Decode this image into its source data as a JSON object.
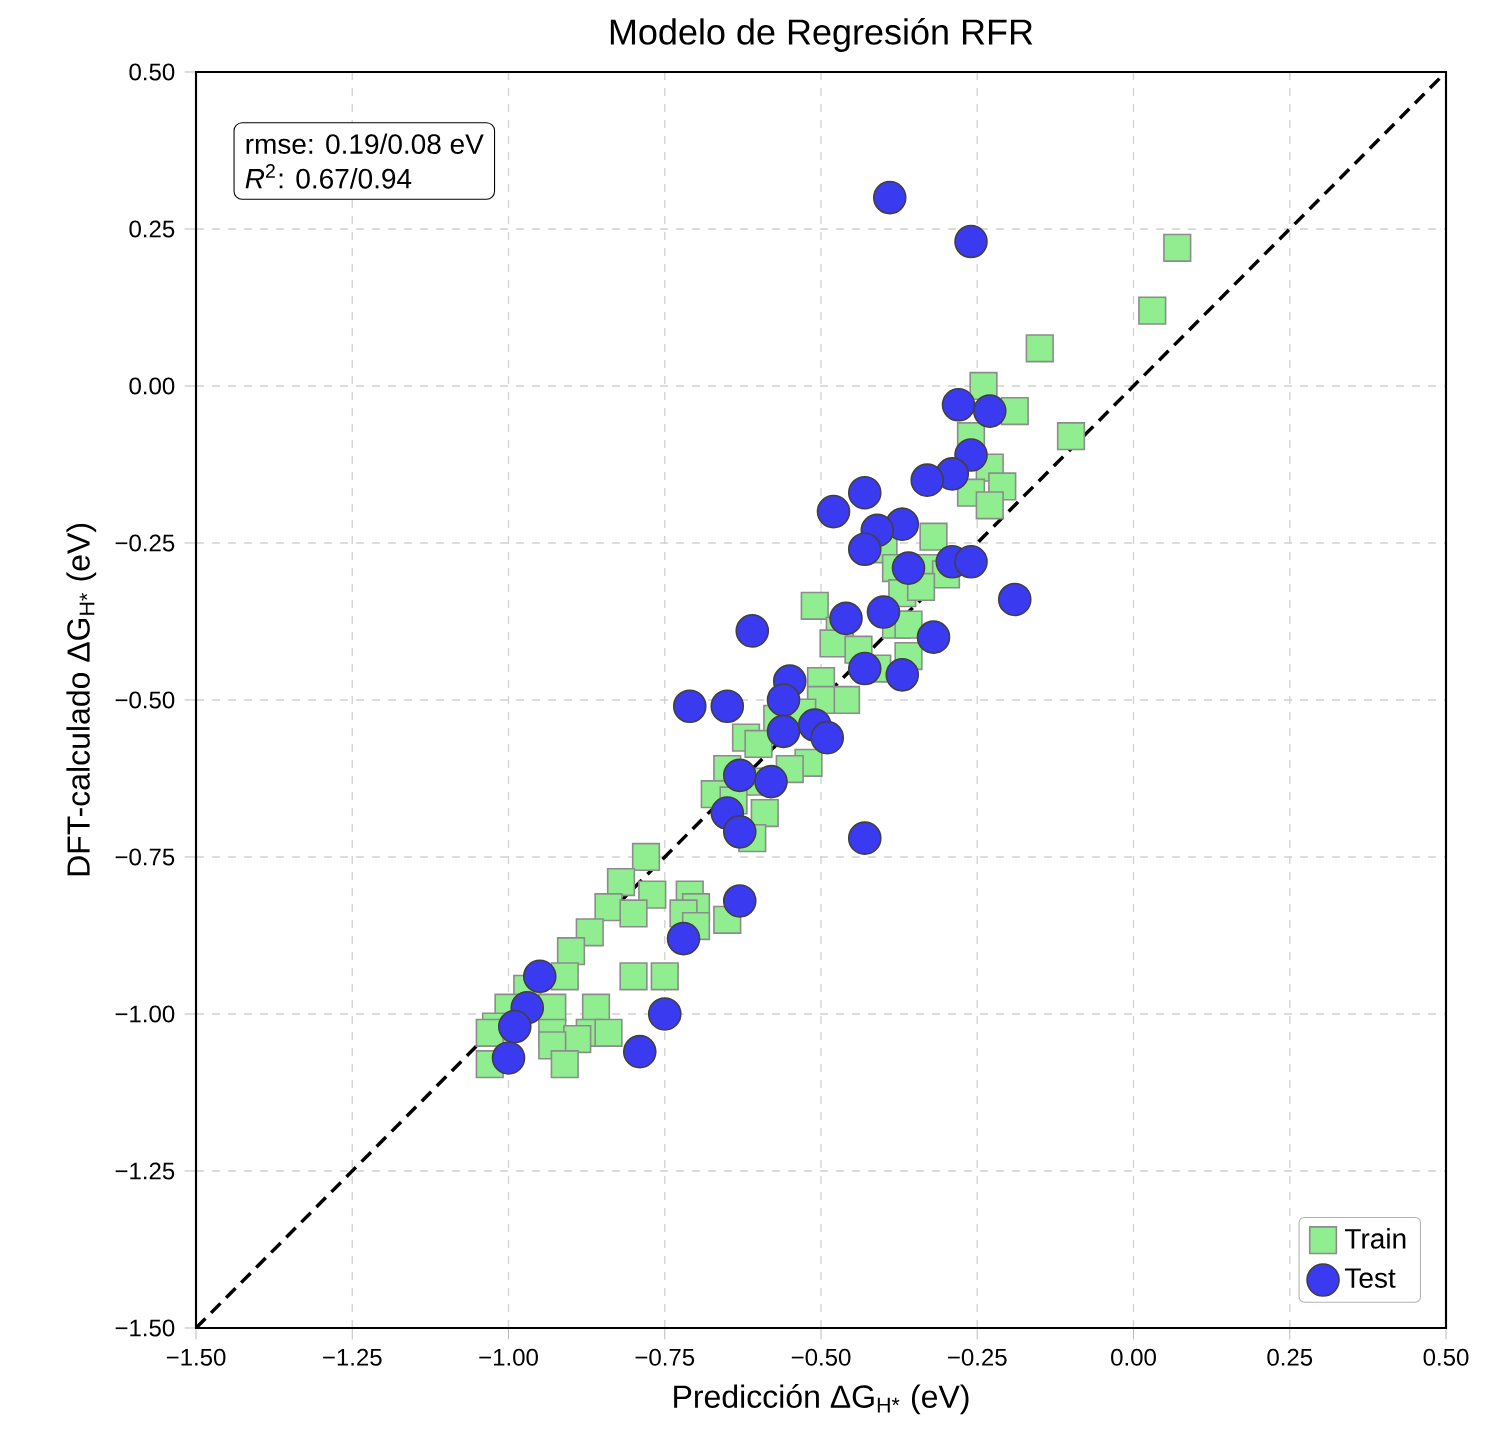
{
  "chart_data": {
    "type": "scatter",
    "title": "Modelo de Regresión RFR",
    "xlabel": "Predicción ΔG$_{H*}$ (eV)",
    "ylabel": "DFT-calculado ΔG$_{H*}$ (eV)",
    "annotations": [
      "rmse: 0.19/0.08 eV",
      "*R*$^{2}$: 0.67/0.94"
    ],
    "xlim": [
      -1.5,
      0.5
    ],
    "ylim": [
      -1.5,
      0.5
    ],
    "xticks": [
      {
        "value": -1.5,
        "label": "−1.50"
      },
      {
        "value": -1.25,
        "label": "−1.25"
      },
      {
        "value": -1.0,
        "label": "−1.00"
      },
      {
        "value": -0.75,
        "label": "−0.75"
      },
      {
        "value": -0.5,
        "label": "−0.50"
      },
      {
        "value": -0.25,
        "label": "−0.25"
      },
      {
        "value": 0,
        "label": "0.00"
      },
      {
        "value": 0.25,
        "label": "0.25"
      },
      {
        "value": 0.5,
        "label": "0.50"
      }
    ],
    "yticks": [
      {
        "value": -1.5,
        "label": "−1.50"
      },
      {
        "value": -1.25,
        "label": "−1.25"
      },
      {
        "value": -1.0,
        "label": "−1.00"
      },
      {
        "value": -0.75,
        "label": "−0.75"
      },
      {
        "value": -0.5,
        "label": "−0.50"
      },
      {
        "value": -0.25,
        "label": "−0.25"
      },
      {
        "value": 0,
        "label": "0.00"
      },
      {
        "value": 0.25,
        "label": "0.25"
      },
      {
        "value": 0.5,
        "label": "0.50"
      }
    ],
    "grid": true,
    "legend": "bottom right",
    "series": [
      {
        "name": "Train",
        "marker": "square",
        "color": "#90ee90",
        "x": [
          0.07,
          0.03,
          -0.15,
          -0.24,
          -0.19,
          -0.1,
          -0.26,
          -0.23,
          -0.21,
          -0.26,
          -0.23,
          -0.32,
          -0.4,
          -0.38,
          -0.33,
          -0.3,
          -0.37,
          -0.34,
          -0.51,
          -0.47,
          -0.38,
          -0.36,
          -0.48,
          -0.44,
          -0.36,
          -0.41,
          -0.5,
          -0.46,
          -0.5,
          -0.53,
          -0.57,
          -0.62,
          -0.6,
          -0.52,
          -0.55,
          -0.65,
          -0.61,
          -0.67,
          -0.64,
          -0.59,
          -0.61,
          -0.78,
          -0.82,
          -0.77,
          -0.84,
          -0.8,
          -0.71,
          -0.7,
          -0.72,
          -0.65,
          -0.87,
          -0.7,
          -0.9,
          -0.91,
          -0.75,
          -0.8,
          -0.97,
          -0.93,
          -0.86,
          -1.0,
          -1.02,
          -1.03,
          -0.93,
          -0.87,
          -0.84,
          -0.89,
          -0.93,
          -1.03,
          -0.91
        ],
        "values": [
          0.22,
          0.12,
          0.06,
          0.0,
          -0.04,
          -0.08,
          -0.08,
          -0.13,
          -0.16,
          -0.17,
          -0.19,
          -0.24,
          -0.26,
          -0.29,
          -0.29,
          -0.3,
          -0.33,
          -0.32,
          -0.35,
          -0.39,
          -0.38,
          -0.38,
          -0.41,
          -0.42,
          -0.43,
          -0.45,
          -0.47,
          -0.5,
          -0.5,
          -0.52,
          -0.53,
          -0.56,
          -0.57,
          -0.6,
          -0.61,
          -0.61,
          -0.63,
          -0.65,
          -0.66,
          -0.68,
          -0.72,
          -0.75,
          -0.79,
          -0.81,
          -0.83,
          -0.84,
          -0.81,
          -0.83,
          -0.84,
          -0.85,
          -0.87,
          -0.86,
          -0.9,
          -0.94,
          -0.94,
          -0.94,
          -0.96,
          -0.99,
          -0.99,
          -0.99,
          -1.02,
          -1.03,
          -1.03,
          -1.03,
          -1.03,
          -1.04,
          -1.05,
          -1.08,
          -1.08
        ]
      },
      {
        "name": "Test",
        "marker": "circle",
        "color": "#3a3af0",
        "x": [
          -0.39,
          -0.26,
          -0.28,
          -0.23,
          -0.26,
          -0.29,
          -0.33,
          -0.43,
          -0.48,
          -0.37,
          -0.41,
          -0.43,
          -0.36,
          -0.29,
          -0.26,
          -0.19,
          -0.61,
          -0.4,
          -0.46,
          -0.32,
          -0.43,
          -0.37,
          -0.71,
          -0.65,
          -0.55,
          -0.56,
          -0.56,
          -0.51,
          -0.49,
          -0.63,
          -0.58,
          -0.65,
          -0.63,
          -0.63,
          -0.72,
          -0.95,
          -0.97,
          -0.99,
          -1.0,
          -0.75,
          -0.79,
          -0.43
        ],
        "values": [
          0.3,
          0.23,
          -0.03,
          -0.04,
          -0.11,
          -0.14,
          -0.15,
          -0.17,
          -0.2,
          -0.22,
          -0.23,
          -0.26,
          -0.29,
          -0.28,
          -0.28,
          -0.34,
          -0.39,
          -0.36,
          -0.37,
          -0.4,
          -0.45,
          -0.46,
          -0.51,
          -0.51,
          -0.47,
          -0.5,
          -0.55,
          -0.54,
          -0.56,
          -0.62,
          -0.63,
          -0.68,
          -0.71,
          -0.82,
          -0.88,
          -0.94,
          -0.99,
          -1.02,
          -1.07,
          -1.0,
          -1.06,
          -0.72
        ]
      },
      {
        "type": "line",
        "marker": "none",
        "line_style": "dashed",
        "color": "#000000",
        "x": [
          -1.5,
          0.5
        ],
        "values": [
          -1.5,
          0.5
        ]
      }
    ]
  }
}
